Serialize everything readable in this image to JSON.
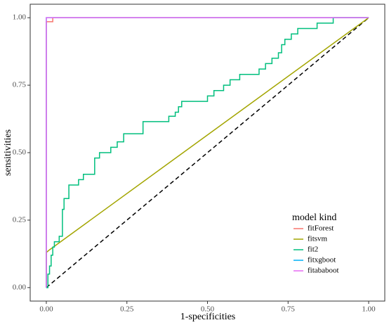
{
  "chart_data": {
    "type": "line",
    "x_label": "1-specificities",
    "y_label": "sensitivities",
    "legend_title": "model kind",
    "xlim": [
      -0.05,
      1.05
    ],
    "ylim": [
      -0.05,
      1.05
    ],
    "xticks": [
      {
        "value": 0,
        "label": "0.00"
      },
      {
        "value": 0.25,
        "label": "0.25"
      },
      {
        "value": 0.5,
        "label": "0.50"
      },
      {
        "value": 0.75,
        "label": "0.75"
      },
      {
        "value": 1,
        "label": "1.00"
      }
    ],
    "yticks": [
      {
        "value": 0,
        "label": "0.00"
      },
      {
        "value": 0.25,
        "label": "0.25"
      },
      {
        "value": 0.5,
        "label": "0.50"
      },
      {
        "value": 0.75,
        "label": "0.75"
      },
      {
        "value": 1,
        "label": "1.00"
      }
    ],
    "diagonal": {
      "x": [
        0,
        1
      ],
      "y": [
        0,
        1
      ],
      "color": "#000000"
    },
    "series": [
      {
        "name": "fitForest",
        "color": "#F8766D",
        "x": [
          0,
          0,
          0.02,
          0.02,
          1
        ],
        "y": [
          0,
          0.985,
          0.985,
          1,
          1
        ]
      },
      {
        "name": "fitsvm",
        "color": "#A3A500",
        "x": [
          0,
          0,
          0.01,
          1
        ],
        "y": [
          0,
          0.13,
          0.14,
          1
        ]
      },
      {
        "name": "fit2",
        "color": "#00BF7D",
        "x": [
          0,
          0.005,
          0.005,
          0.01,
          0.01,
          0.015,
          0.015,
          0.02,
          0.02,
          0.025,
          0.025,
          0.04,
          0.04,
          0.05,
          0.05,
          0.055,
          0.055,
          0.07,
          0.07,
          0.1,
          0.1,
          0.115,
          0.115,
          0.15,
          0.15,
          0.165,
          0.165,
          0.2,
          0.2,
          0.22,
          0.22,
          0.24,
          0.24,
          0.3,
          0.3,
          0.38,
          0.38,
          0.4,
          0.4,
          0.41,
          0.41,
          0.42,
          0.42,
          0.5,
          0.5,
          0.52,
          0.52,
          0.55,
          0.55,
          0.57,
          0.57,
          0.6,
          0.6,
          0.66,
          0.66,
          0.68,
          0.68,
          0.7,
          0.7,
          0.72,
          0.72,
          0.73,
          0.73,
          0.74,
          0.74,
          0.76,
          0.76,
          0.78,
          0.78,
          0.84,
          0.84,
          0.89,
          0.89,
          1
        ],
        "y": [
          0,
          0,
          0.05,
          0.05,
          0.08,
          0.08,
          0.12,
          0.12,
          0.15,
          0.15,
          0.17,
          0.17,
          0.19,
          0.19,
          0.29,
          0.29,
          0.33,
          0.33,
          0.38,
          0.38,
          0.4,
          0.4,
          0.42,
          0.42,
          0.48,
          0.48,
          0.5,
          0.5,
          0.52,
          0.52,
          0.54,
          0.54,
          0.57,
          0.57,
          0.615,
          0.615,
          0.635,
          0.635,
          0.65,
          0.65,
          0.67,
          0.67,
          0.69,
          0.69,
          0.71,
          0.71,
          0.73,
          0.73,
          0.75,
          0.75,
          0.77,
          0.77,
          0.79,
          0.79,
          0.81,
          0.81,
          0.83,
          0.83,
          0.85,
          0.85,
          0.87,
          0.87,
          0.9,
          0.9,
          0.92,
          0.92,
          0.94,
          0.94,
          0.96,
          0.96,
          0.98,
          0.98,
          1,
          1
        ]
      },
      {
        "name": "fitxgboot",
        "color": "#00B0F6",
        "x": [
          0,
          0,
          1
        ],
        "y": [
          0,
          1,
          1
        ]
      },
      {
        "name": "fitababoot",
        "color": "#E76BF3",
        "x": [
          0,
          0,
          1
        ],
        "y": [
          0,
          1,
          1
        ]
      }
    ]
  }
}
